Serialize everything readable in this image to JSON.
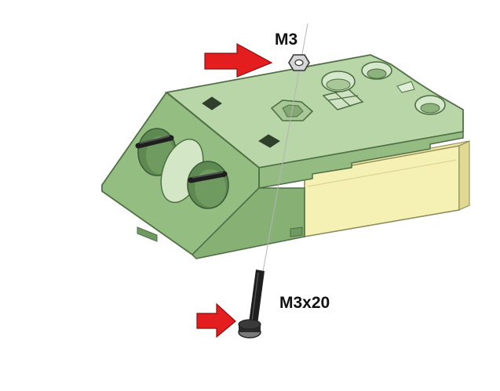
{
  "callouts": {
    "nut_label": "M3",
    "screw_label": "M3x20"
  },
  "colors": {
    "housing_top": "#b8d6a8",
    "housing_front": "#94bd82",
    "housing_side": "#7fa96f",
    "housing_edge": "#4f6f45",
    "pcb_block": "#f5f0b4",
    "arrow_red": "#e41e1e",
    "hardware_dark": "#1e1e1e",
    "nut_gray": "#cfcfcf",
    "guide_line": "#b5b5b5"
  },
  "icons": {
    "arrow_nut": "right-arrow-icon",
    "arrow_screw": "right-arrow-icon"
  }
}
